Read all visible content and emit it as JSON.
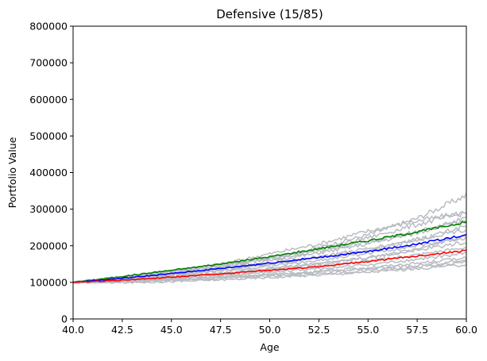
{
  "chart_data": {
    "type": "line",
    "title": "Defensive (15/85)",
    "xlabel": "Age",
    "ylabel": "Portfolio Value",
    "xlim": [
      40,
      60
    ],
    "ylim": [
      0,
      800000
    ],
    "x_ticks": [
      40.0,
      42.5,
      45.0,
      47.5,
      50.0,
      52.5,
      55.0,
      57.5,
      60.0
    ],
    "x_tick_labels": [
      "40.0",
      "42.5",
      "45.0",
      "47.5",
      "50.0",
      "52.5",
      "55.0",
      "57.5",
      "60.0"
    ],
    "y_ticks": [
      0,
      100000,
      200000,
      300000,
      400000,
      500000,
      600000,
      700000,
      800000
    ],
    "y_tick_labels": [
      "0",
      "100000",
      "200000",
      "300000",
      "400000",
      "500000",
      "600000",
      "700000",
      "800000"
    ],
    "grid": false,
    "simulation_color": "#b8bcc2",
    "simulations": [
      {
        "x": [
          40,
          42.5,
          45,
          47.5,
          50,
          52.5,
          55,
          57.5,
          60
        ],
        "y": [
          100000,
          112000,
          125000,
          142000,
          165000,
          195000,
          230000,
          275000,
          338000
        ]
      },
      {
        "x": [
          40,
          42.5,
          45,
          47.5,
          50,
          52.5,
          55,
          57.5,
          60
        ],
        "y": [
          100000,
          116000,
          133000,
          150000,
          178000,
          205000,
          240000,
          268000,
          292000
        ]
      },
      {
        "x": [
          40,
          42.5,
          45,
          47.5,
          50,
          52.5,
          55,
          57.5,
          60
        ],
        "y": [
          100000,
          113000,
          128000,
          148000,
          168000,
          190000,
          222000,
          258000,
          290000
        ]
      },
      {
        "x": [
          40,
          42.5,
          45,
          47.5,
          50,
          52.5,
          55,
          57.5,
          60
        ],
        "y": [
          100000,
          110000,
          124000,
          140000,
          158000,
          180000,
          205000,
          235000,
          275000
        ]
      },
      {
        "x": [
          40,
          42.5,
          45,
          47.5,
          50,
          52.5,
          55,
          57.5,
          60
        ],
        "y": [
          100000,
          114000,
          130000,
          146000,
          162000,
          185000,
          210000,
          240000,
          265000
        ]
      },
      {
        "x": [
          40,
          42.5,
          45,
          47.5,
          50,
          52.5,
          55,
          57.5,
          60
        ],
        "y": [
          100000,
          108000,
          120000,
          133000,
          150000,
          170000,
          192000,
          218000,
          245000
        ]
      },
      {
        "x": [
          40,
          42.5,
          45,
          47.5,
          50,
          52.5,
          55,
          57.5,
          60
        ],
        "y": [
          100000,
          109000,
          119000,
          131000,
          144000,
          160000,
          180000,
          200000,
          222000
        ]
      },
      {
        "x": [
          40,
          42.5,
          45,
          47.5,
          50,
          52.5,
          55,
          57.5,
          60
        ],
        "y": [
          100000,
          107000,
          116000,
          126000,
          138000,
          152000,
          168000,
          188000,
          210000
        ]
      },
      {
        "x": [
          40,
          42.5,
          45,
          47.5,
          50,
          52.5,
          55,
          57.5,
          60
        ],
        "y": [
          100000,
          106000,
          114000,
          122000,
          132000,
          145000,
          158000,
          175000,
          195000
        ]
      },
      {
        "x": [
          40,
          42.5,
          45,
          47.5,
          50,
          52.5,
          55,
          57.5,
          60
        ],
        "y": [
          100000,
          104000,
          110000,
          118000,
          127000,
          137000,
          148000,
          162000,
          180000
        ]
      },
      {
        "x": [
          40,
          42.5,
          45,
          47.5,
          50,
          52.5,
          55,
          57.5,
          60
        ],
        "y": [
          100000,
          103000,
          108000,
          115000,
          122000,
          130000,
          140000,
          152000,
          168000
        ]
      },
      {
        "x": [
          40,
          42.5,
          45,
          47.5,
          50,
          52.5,
          55,
          57.5,
          60
        ],
        "y": [
          100000,
          101000,
          105000,
          111000,
          117000,
          124000,
          132000,
          142000,
          155000
        ]
      },
      {
        "x": [
          40,
          42.5,
          45,
          47.5,
          50,
          52.5,
          55,
          57.5,
          60
        ],
        "y": [
          100000,
          99000,
          102000,
          107000,
          113000,
          120000,
          128000,
          137000,
          148000
        ]
      },
      {
        "x": [
          40,
          42.5,
          45,
          47.5,
          50,
          52.5,
          55,
          57.5,
          60
        ],
        "y": [
          100000,
          105000,
          112000,
          124000,
          136000,
          150000,
          166000,
          190000,
          230000
        ]
      },
      {
        "x": [
          40,
          42.5,
          45,
          47.5,
          50,
          52.5,
          55,
          57.5,
          60
        ],
        "y": [
          100000,
          111000,
          122000,
          136000,
          150000,
          168000,
          188000,
          215000,
          255000
        ]
      },
      {
        "x": [
          40,
          42.5,
          45,
          47.5,
          50,
          52.5,
          55,
          57.5,
          60
        ],
        "y": [
          100000,
          102000,
          106000,
          113000,
          120000,
          128000,
          137000,
          146000,
          160000
        ]
      }
    ],
    "series": [
      {
        "color": "#008000",
        "x": [
          40,
          42.5,
          45,
          47.5,
          50,
          52.5,
          55,
          57.5,
          60
        ],
        "y": [
          100000,
          116000,
          133000,
          150000,
          170000,
          192000,
          214000,
          238000,
          265000
        ]
      },
      {
        "color": "#0000ff",
        "x": [
          40,
          42.5,
          45,
          47.5,
          50,
          52.5,
          55,
          57.5,
          60
        ],
        "y": [
          100000,
          111000,
          124000,
          138000,
          153000,
          168000,
          184000,
          205000,
          230000
        ]
      },
      {
        "color": "#ff0000",
        "x": [
          40,
          42.5,
          45,
          47.5,
          50,
          52.5,
          55,
          57.5,
          60
        ],
        "y": [
          100000,
          106000,
          114000,
          123000,
          133000,
          143000,
          157000,
          172000,
          187000
        ]
      }
    ]
  }
}
